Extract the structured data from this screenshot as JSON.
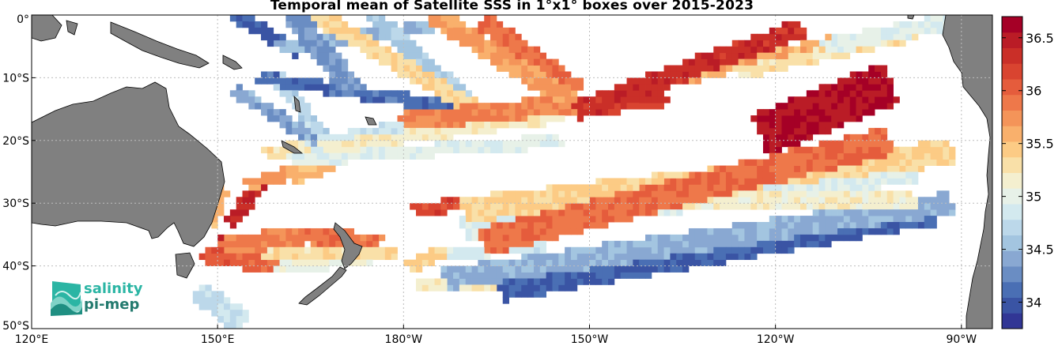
{
  "title": "Temporal mean of Satellite SSS in 1°x1° boxes over 2015-2023",
  "map": {
    "projection": "equirectangular",
    "lon_range": [
      120,
      275
    ],
    "lat_range": [
      -50,
      0
    ],
    "grid": true,
    "land_color": "#808080",
    "ocean_color": "#ffffff",
    "x_ticks": [
      {
        "lon": 120,
        "label": "120°E"
      },
      {
        "lon": 150,
        "label": "150°E"
      },
      {
        "lon": 180,
        "label": "180°W"
      },
      {
        "lon": 210,
        "label": "150°W"
      },
      {
        "lon": 240,
        "label": "120°W"
      },
      {
        "lon": 270,
        "label": "90°W"
      }
    ],
    "y_ticks": [
      {
        "lat": 0,
        "label": "0°"
      },
      {
        "lat": -10,
        "label": "10°S"
      },
      {
        "lat": -20,
        "label": "20°S"
      },
      {
        "lat": -30,
        "label": "30°S"
      },
      {
        "lat": -40,
        "label": "40°S"
      },
      {
        "lat": -50,
        "label": "50°S"
      }
    ]
  },
  "colorbar": {
    "vmin": 33.75,
    "vmax": 36.7,
    "levels": 20,
    "ticks": [
      34,
      34.5,
      35,
      35.5,
      36,
      36.5
    ],
    "tick_labels": [
      "34",
      "34.5",
      "35",
      "35.5",
      "36",
      "36.5"
    ],
    "colors": [
      "#313695",
      "#3a54a4",
      "#4a6fb4",
      "#6a8dc3",
      "#89a8d2",
      "#a3c5e0",
      "#bcd8ea",
      "#d3e9ef",
      "#e7f1e8",
      "#f4efcf",
      "#f9e0a8",
      "#fccb85",
      "#f9b06c",
      "#f49459",
      "#ee784a",
      "#e55c3c",
      "#d94430",
      "#ca2f28",
      "#ba1c26",
      "#a50026"
    ]
  },
  "logo": {
    "line1": "salinity",
    "line2": "pi-mep"
  },
  "chart_data": {
    "type": "heatmap",
    "title": "Temporal mean of Satellite SSS in 1°x1° boxes over 2015-2023",
    "x": "longitude",
    "y": "latitude",
    "xlim": [
      120,
      275
    ],
    "ylim": [
      -50,
      0
    ],
    "value_range": [
      33.75,
      36.7
    ],
    "tracks": [
      {
        "from": [
          208,
          -15
        ],
        "to": [
          244,
          -2
        ],
        "value": 36.35,
        "half_width_deg": 1.2
      },
      {
        "from": [
          208,
          -15
        ],
        "to": [
          222,
          -13
        ],
        "value": 36.3,
        "half_width_deg": 0.9
      },
      {
        "from": [
          238,
          -19
        ],
        "to": [
          258,
          -11
        ],
        "value": 36.55,
        "half_width_deg": 3.0
      },
      {
        "from": [
          193,
          -36
        ],
        "to": [
          258,
          -20
        ],
        "value": 35.95,
        "half_width_deg": 1.8
      },
      {
        "from": [
          190,
          -31
        ],
        "to": [
          268,
          -22
        ],
        "value": 35.4,
        "half_width_deg": 1.5
      },
      {
        "from": [
          191,
          -30
        ],
        "to": [
          262,
          -29
        ],
        "value": 35.15,
        "half_width_deg": 1.1
      },
      {
        "from": [
          190,
          -34
        ],
        "to": [
          262,
          -25
        ],
        "value": 34.9,
        "half_width_deg": 1.3
      },
      {
        "from": [
          187,
          -42
        ],
        "to": [
          268,
          -30
        ],
        "value": 34.45,
        "half_width_deg": 1.3
      },
      {
        "from": [
          196,
          -44
        ],
        "to": [
          265,
          -32
        ],
        "value": 34.05,
        "half_width_deg": 1.1
      },
      {
        "from": [
          248,
          -5
        ],
        "to": [
          273,
          0
        ],
        "value": 34.95,
        "half_width_deg": 0.8
      },
      {
        "from": [
          234,
          -9
        ],
        "to": [
          262,
          -3
        ],
        "value": 35.3,
        "half_width_deg": 0.7
      },
      {
        "from": [
          225,
          -10
        ],
        "to": [
          250,
          -4
        ],
        "value": 35.6,
        "half_width_deg": 0.6
      },
      {
        "from": [
          185,
          0
        ],
        "to": [
          208,
          -14
        ],
        "value": 35.7,
        "half_width_deg": 1.2
      },
      {
        "from": [
          193,
          -1
        ],
        "to": [
          208,
          -12
        ],
        "value": 35.95,
        "half_width_deg": 1.0
      },
      {
        "from": [
          180,
          -17
        ],
        "to": [
          209,
          -14
        ],
        "value": 35.85,
        "half_width_deg": 1.0
      },
      {
        "from": [
          167,
          -21
        ],
        "to": [
          205,
          -16
        ],
        "value": 35.2,
        "half_width_deg": 0.7
      },
      {
        "from": [
          162,
          -23
        ],
        "to": [
          205,
          -20
        ],
        "value": 34.95,
        "half_width_deg": 0.6
      },
      {
        "from": [
          166,
          0
        ],
        "to": [
          195,
          -17
        ],
        "value": 35.35,
        "half_width_deg": 0.8
      },
      {
        "from": [
          162,
          0
        ],
        "to": [
          172,
          -12
        ],
        "value": 34.3,
        "half_width_deg": 1.3
      },
      {
        "from": [
          175,
          0
        ],
        "to": [
          192,
          -15
        ],
        "value": 34.6,
        "half_width_deg": 0.9
      },
      {
        "from": [
          157,
          -10
        ],
        "to": [
          192,
          -15
        ],
        "value": 34.1,
        "half_width_deg": 0.6
      },
      {
        "from": [
          160,
          -5
        ],
        "to": [
          184,
          -2
        ],
        "value": 34.5,
        "half_width_deg": 0.6
      },
      {
        "from": [
          153,
          0
        ],
        "to": [
          163,
          -6
        ],
        "value": 34.0,
        "half_width_deg": 0.5
      },
      {
        "from": [
          160,
          -10
        ],
        "to": [
          167,
          -19
        ],
        "value": 34.7,
        "half_width_deg": 0.7
      },
      {
        "from": [
          153,
          -12
        ],
        "to": [
          166,
          -20
        ],
        "value": 34.4,
        "half_width_deg": 0.6
      },
      {
        "from": [
          165,
          -21
        ],
        "to": [
          180,
          -18
        ],
        "value": 34.8,
        "half_width_deg": 0.8
      },
      {
        "from": [
          158,
          -22
        ],
        "to": [
          170,
          -20
        ],
        "value": 35.3,
        "half_width_deg": 0.6
      },
      {
        "from": [
          162,
          -26
        ],
        "to": [
          168,
          -24
        ],
        "value": 35.55,
        "half_width_deg": 0.6
      },
      {
        "from": [
          155,
          -27
        ],
        "to": [
          166,
          -24
        ],
        "value": 35.7,
        "half_width_deg": 0.5
      },
      {
        "from": [
          152,
          -33
        ],
        "to": [
          157,
          -27
        ],
        "value": 36.4,
        "half_width_deg": 0.5
      },
      {
        "from": [
          164,
          -35
        ],
        "to": [
          176,
          -36
        ],
        "value": 35.9,
        "half_width_deg": 0.9
      },
      {
        "from": [
          151,
          -37
        ],
        "to": [
          164,
          -35
        ],
        "value": 35.85,
        "half_width_deg": 1.0
      },
      {
        "from": [
          148,
          -38
        ],
        "to": [
          159,
          -40
        ],
        "value": 36.05,
        "half_width_deg": 0.9
      },
      {
        "from": [
          150,
          -36
        ],
        "to": [
          154,
          -36
        ],
        "value": 36.5,
        "half_width_deg": 0.6
      },
      {
        "from": [
          157,
          -38
        ],
        "to": [
          178,
          -38
        ],
        "value": 35.3,
        "half_width_deg": 0.8
      },
      {
        "from": [
          158,
          -40
        ],
        "to": [
          174,
          -39
        ],
        "value": 35.05,
        "half_width_deg": 0.6
      },
      {
        "from": [
          182,
          -31
        ],
        "to": [
          190,
          -30
        ],
        "value": 36.2,
        "half_width_deg": 0.6
      },
      {
        "from": [
          149,
          -33
        ],
        "to": [
          151,
          -28
        ],
        "value": 35.6,
        "half_width_deg": 0.4
      },
      {
        "from": [
          147,
          -44
        ],
        "to": [
          154,
          -49
        ],
        "value": 34.75,
        "half_width_deg": 1.3
      },
      {
        "from": [
          182,
          -43
        ],
        "to": [
          197,
          -43
        ],
        "value": 35.2,
        "half_width_deg": 0.6
      },
      {
        "from": [
          181,
          -40
        ],
        "to": [
          186,
          -38
        ],
        "value": 35.4,
        "half_width_deg": 0.5
      },
      {
        "from": [
          186,
          -38
        ],
        "to": [
          202,
          -37
        ],
        "value": 34.85,
        "half_width_deg": 0.5
      }
    ]
  }
}
